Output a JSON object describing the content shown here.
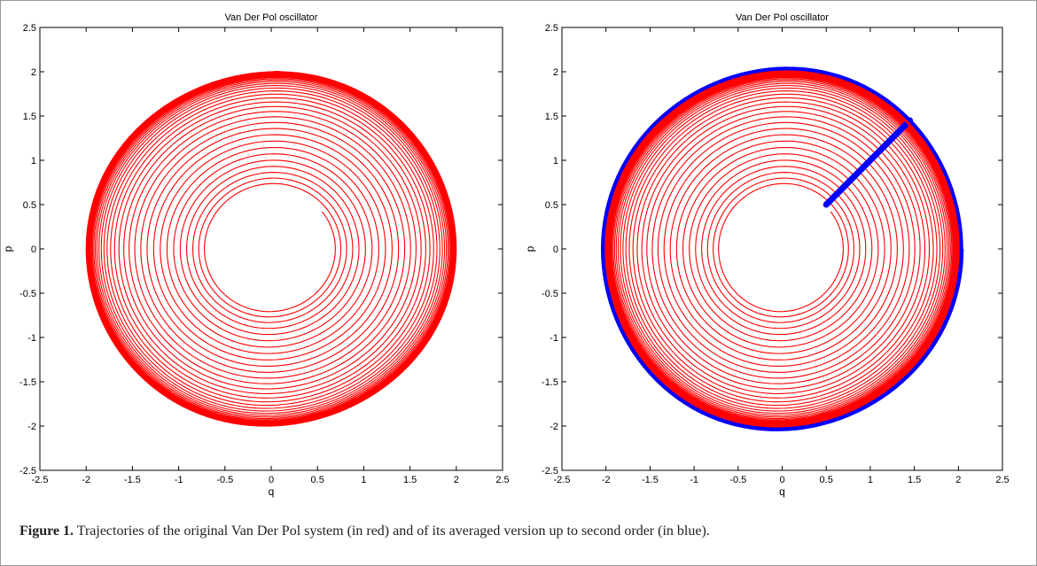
{
  "caption": {
    "label": "Figure 1.",
    "text": " Trajectories of the original Van Der Pol system (in red) and of its averaged version up to second order (in blue)."
  },
  "colors": {
    "original": "#ff0000",
    "averaged": "#0000ff",
    "axis": "#000000"
  },
  "chart_data": [
    {
      "type": "line",
      "title": "Van Der Pol oscillator",
      "xlabel": "q",
      "ylabel": "p",
      "xlim": [
        -2.5,
        2.5
      ],
      "ylim": [
        -2.5,
        2.5
      ],
      "xticks": [
        "-2.5",
        "-2",
        "-1.5",
        "-1",
        "-0.5",
        "0",
        "0.5",
        "1",
        "1.5",
        "2",
        "2.5"
      ],
      "yticks": [
        "-2.5",
        "-2",
        "-1.5",
        "-1",
        "-0.5",
        "0",
        "0.5",
        "1",
        "1.5",
        "2",
        "2.5"
      ],
      "grid": false,
      "series": [
        {
          "color": "#ff0000",
          "curve": "spiral",
          "start": [
            0.55,
            0.42
          ],
          "limit_cycle_amplitude": 2.0
        }
      ]
    },
    {
      "type": "line",
      "title": "Van Der Pol oscillator",
      "xlabel": "q",
      "ylabel": "p",
      "xlim": [
        -2.5,
        2.5
      ],
      "ylim": [
        -2.5,
        2.5
      ],
      "xticks": [
        "-2.5",
        "-2",
        "-1.5",
        "-1",
        "-0.5",
        "0",
        "0.5",
        "1",
        "1.5",
        "2",
        "2.5"
      ],
      "yticks": [
        "-2.5",
        "-2",
        "-1.5",
        "-1",
        "-0.5",
        "0",
        "0.5",
        "1",
        "1.5",
        "2",
        "2.5"
      ],
      "grid": false,
      "series": [
        {
          "color": "#ff0000",
          "curve": "spiral",
          "start": [
            0.55,
            0.42
          ],
          "limit_cycle_amplitude": 2.0
        },
        {
          "color": "#0000ff",
          "curve": "averaged",
          "segment_start": [
            0.5,
            0.5
          ],
          "segment_end": [
            1.45,
            1.45
          ],
          "limit_cycle_amplitude": 2.03
        }
      ]
    }
  ]
}
